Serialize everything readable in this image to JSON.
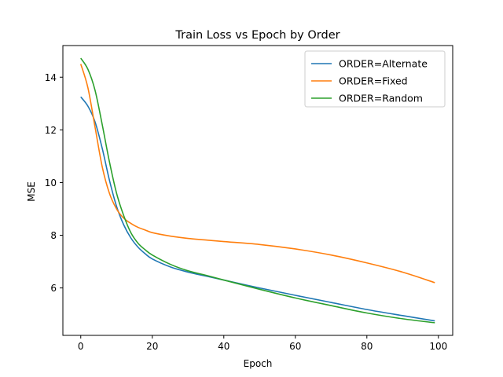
{
  "chart_data": {
    "type": "line",
    "title": "Train Loss vs Epoch by Order",
    "xlabel": "Epoch",
    "ylabel": "MSE",
    "xlim": [
      -5,
      104
    ],
    "ylim": [
      4.2,
      15.2
    ],
    "xticks": [
      0,
      20,
      40,
      60,
      80,
      100
    ],
    "yticks": [
      6,
      8,
      10,
      12,
      14
    ],
    "grid": false,
    "legend_position": "top-right",
    "series": [
      {
        "name": "ORDER=Alternate",
        "color": "#1f77b4",
        "x": [
          0,
          2,
          4,
          6,
          8,
          10,
          12,
          14,
          16,
          18,
          20,
          25,
          30,
          35,
          40,
          50,
          60,
          70,
          80,
          90,
          99
        ],
        "y": [
          13.25,
          12.9,
          12.3,
          11.3,
          10.1,
          9.1,
          8.4,
          7.9,
          7.55,
          7.3,
          7.1,
          6.8,
          6.6,
          6.45,
          6.3,
          6.0,
          5.72,
          5.45,
          5.18,
          4.95,
          4.75
        ]
      },
      {
        "name": "ORDER=Fixed",
        "color": "#ff7f0e",
        "x": [
          0,
          2,
          4,
          6,
          8,
          10,
          12,
          14,
          16,
          18,
          20,
          25,
          30,
          35,
          40,
          50,
          60,
          70,
          80,
          90,
          99
        ],
        "y": [
          14.5,
          13.6,
          12.1,
          10.6,
          9.6,
          9.0,
          8.65,
          8.45,
          8.3,
          8.2,
          8.1,
          7.97,
          7.88,
          7.82,
          7.76,
          7.65,
          7.48,
          7.25,
          6.95,
          6.6,
          6.2
        ]
      },
      {
        "name": "ORDER=Random",
        "color": "#2ca02c",
        "x": [
          0,
          2,
          4,
          6,
          8,
          10,
          12,
          14,
          16,
          18,
          20,
          25,
          30,
          35,
          40,
          50,
          60,
          70,
          80,
          90,
          99
        ],
        "y": [
          14.72,
          14.3,
          13.5,
          12.2,
          10.8,
          9.6,
          8.75,
          8.1,
          7.7,
          7.45,
          7.25,
          6.9,
          6.65,
          6.48,
          6.3,
          5.95,
          5.62,
          5.33,
          5.05,
          4.83,
          4.68
        ]
      }
    ]
  }
}
